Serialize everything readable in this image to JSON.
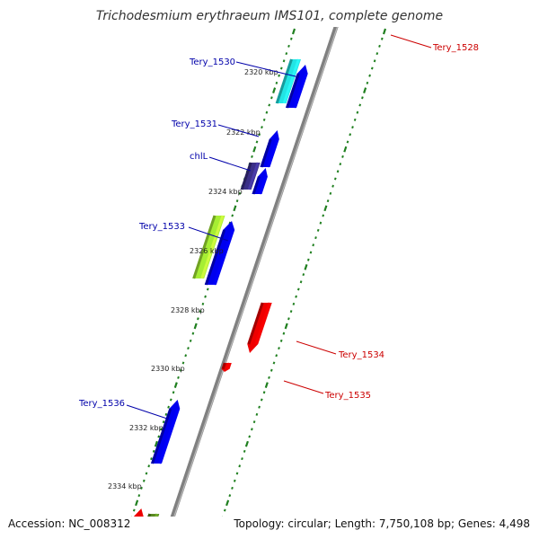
{
  "title": "Trichodesmium erythraeum IMS101, complete genome",
  "accession": "Accession: NC_008312",
  "summary": "Topology: circular; Length: 7,750,108 bp; Genes: 4,498",
  "colors": {
    "backbone": "#808080",
    "tick": "#1f7f1f",
    "label_forward": "#0000aa",
    "label_reverse": "#cc0000"
  },
  "position_labels": [
    "2320 kbp",
    "2322 kbp",
    "2324 kbp",
    "2326 kbp",
    "2328 kbp",
    "2330 kbp",
    "2332 kbp",
    "2334 kbp"
  ],
  "genes": [
    {
      "label": "Tery_1528",
      "strand": "reverse",
      "color": "#ffcccc"
    },
    {
      "label": "Tery_1530",
      "strand": "forward",
      "color": "#22e5e5"
    },
    {
      "label": "",
      "strand": "forward",
      "color": "#0000ee"
    },
    {
      "label": "Tery_1531",
      "strand": "forward",
      "color": "#0000ee"
    },
    {
      "label": "chlL",
      "strand": "forward",
      "color": "#3a2f88"
    },
    {
      "label": "",
      "strand": "forward",
      "color": "#0000ee"
    },
    {
      "label": "Tery_1533",
      "strand": "forward",
      "color": "#a6ee33"
    },
    {
      "label": "",
      "strand": "forward",
      "color": "#0000ee"
    },
    {
      "label": "Tery_1534",
      "strand": "reverse",
      "color": "#ee0000"
    },
    {
      "label": "Tery_1535",
      "strand": "reverse",
      "color": "#ee0000"
    },
    {
      "label": "Tery_1536",
      "strand": "forward",
      "color": "#0000ee"
    },
    {
      "label": "",
      "strand": "forward",
      "color": "#ee0000"
    },
    {
      "label": "",
      "strand": "forward",
      "color": "#5a8a22"
    }
  ]
}
